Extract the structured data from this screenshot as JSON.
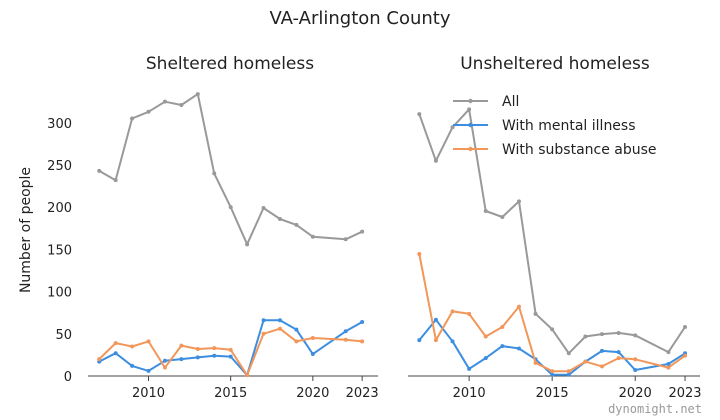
{
  "figure": {
    "title": "VA-Arlington County",
    "watermark": "dynomight.net"
  },
  "legend": [
    "All",
    "With mental illness",
    "With substance abuse"
  ],
  "colors": {
    "All": "#999999",
    "With mental illness": "#3d8ee0",
    "With substance abuse": "#f2965a"
  },
  "chart_data": [
    {
      "type": "line",
      "title": "Sheltered homeless",
      "ylabel": "Number of people",
      "xlim": [
        2006.5,
        2023.6
      ],
      "ylim": [
        0,
        340
      ],
      "xticks": [
        2010,
        2015,
        2020,
        2023
      ],
      "yticks": [
        0,
        50,
        100,
        150,
        200,
        250,
        300
      ],
      "x": [
        2007,
        2008,
        2009,
        2010,
        2011,
        2012,
        2013,
        2014,
        2015,
        2016,
        2017,
        2018,
        2019,
        2020,
        2022,
        2023
      ],
      "series": [
        {
          "name": "All",
          "values": [
            243,
            232,
            305,
            313,
            325,
            321,
            334,
            240,
            200,
            156,
            199,
            186,
            179,
            165,
            162,
            171
          ]
        },
        {
          "name": "With mental illness",
          "values": [
            17,
            27,
            12,
            6,
            18,
            20,
            22,
            24,
            23,
            1,
            66,
            66,
            55,
            26,
            53,
            64
          ]
        },
        {
          "name": "With substance abuse",
          "values": [
            20,
            39,
            35,
            41,
            10,
            36,
            32,
            33,
            31,
            1,
            50,
            56,
            41,
            45,
            43,
            41
          ]
        }
      ]
    },
    {
      "type": "line",
      "title": "Unsheltered homeless",
      "ylabel": "",
      "xlim": [
        2006.5,
        2023.6
      ],
      "ylim": [
        0,
        240
      ],
      "xticks": [
        2010,
        2015,
        2020,
        2023
      ],
      "x": [
        2007,
        2008,
        2009,
        2010,
        2011,
        2012,
        2013,
        2014,
        2015,
        2016,
        2017,
        2018,
        2019,
        2020,
        2022,
        2023
      ],
      "series": [
        {
          "name": "All",
          "values": [
            219,
            180,
            208,
            223,
            138,
            133,
            146,
            52,
            39,
            19,
            33,
            35,
            36,
            34,
            20,
            41
          ]
        },
        {
          "name": "With mental illness",
          "values": [
            30,
            47,
            29,
            6,
            15,
            25,
            23,
            14,
            1,
            1,
            12,
            21,
            20,
            5,
            10,
            19
          ]
        },
        {
          "name": "With substance abuse",
          "values": [
            102,
            30,
            54,
            52,
            33,
            41,
            58,
            11,
            4,
            4,
            12,
            8,
            15,
            14,
            7,
            17
          ]
        }
      ]
    }
  ]
}
